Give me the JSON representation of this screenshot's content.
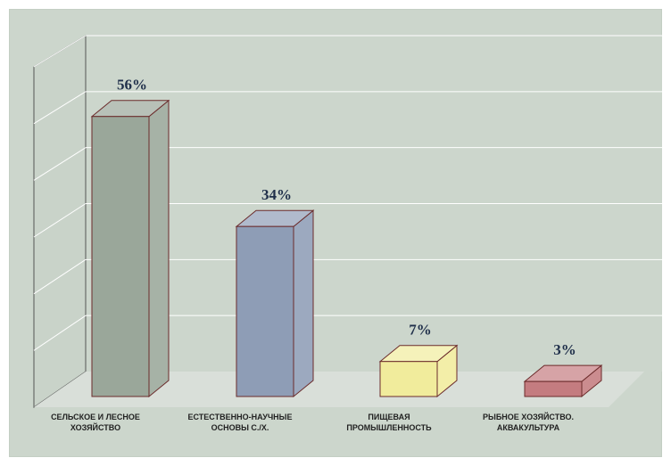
{
  "chart_data": {
    "type": "bar",
    "style": "3d-column",
    "categories": [
      [
        "СЕЛЬСКОЕ И ЛЕСНОЕ",
        "ХОЗЯЙСТВО"
      ],
      [
        "ЕСТЕСТВЕННО-НАУЧНЫЕ",
        "ОСНОВЫ С./Х."
      ],
      [
        "ПИЩЕВАЯ",
        "ПРОМЫШЛЕННОСТЬ"
      ],
      [
        "РЫБНОЕ ХОЗЯЙСТВО.",
        "АКВАКУЛЬТУРА"
      ]
    ],
    "values": [
      56,
      34,
      7,
      3
    ],
    "value_labels": [
      "56%",
      "34%",
      "7%",
      "3%"
    ],
    "colors": [
      "#9aa79a",
      "#8e9db6",
      "#f1ec9c",
      "#c47c80"
    ],
    "ylim": [
      0,
      60
    ],
    "grid": true,
    "legend": "none"
  }
}
